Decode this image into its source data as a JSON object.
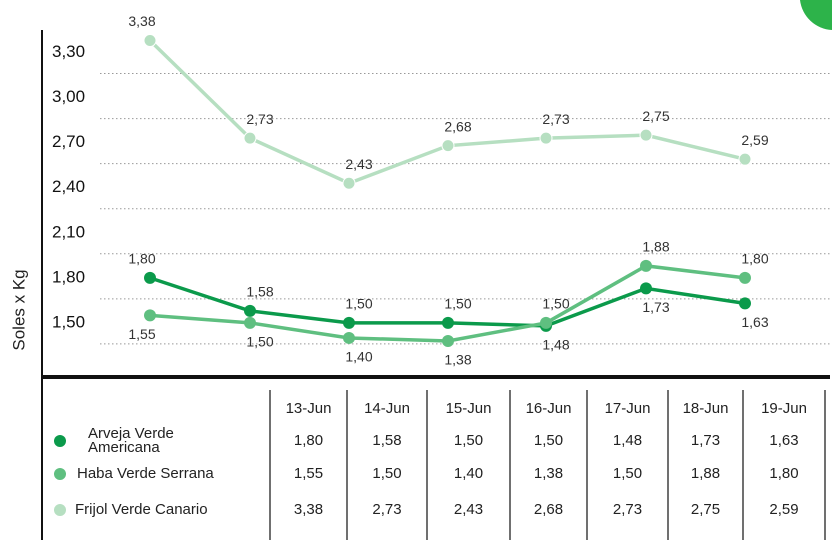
{
  "chart_data": {
    "type": "line",
    "y_label": "Soles x Kg",
    "categories": [
      "13-Jun",
      "14-Jun",
      "15-Jun",
      "16-Jun",
      "17-Jun",
      "18-Jun",
      "19-Jun"
    ],
    "series": [
      {
        "name": "Arveja Verde Americana",
        "color": "#0b9a4b",
        "values": [
          1.8,
          1.58,
          1.5,
          1.5,
          1.48,
          1.73,
          1.63
        ],
        "value_labels": [
          "1,80",
          "1,58",
          "1,50",
          "1,50",
          "1,48",
          "1,73",
          "1,63"
        ]
      },
      {
        "name": "Haba Verde Serrana",
        "color": "#5fbf80",
        "values": [
          1.55,
          1.5,
          1.4,
          1.38,
          1.5,
          1.88,
          1.8
        ],
        "value_labels": [
          "1,55",
          "1,50",
          "1,40",
          "1,38",
          "1,50",
          "1,88",
          "1,80"
        ]
      },
      {
        "name": "Frijol Verde Canario",
        "color": "#b6dfc1",
        "values": [
          3.38,
          2.73,
          2.43,
          2.68,
          2.73,
          2.75,
          2.59
        ],
        "value_labels": [
          "3,38",
          "2,73",
          "2,43",
          "2,68",
          "2,73",
          "2,75",
          "2,59"
        ]
      }
    ],
    "ylim": [
      1.14,
      3.45
    ],
    "yticks": [
      {
        "value": 1.5,
        "label": "1,50"
      },
      {
        "value": 1.8,
        "label": "1,80"
      },
      {
        "value": 2.1,
        "label": "2,10"
      },
      {
        "value": 2.4,
        "label": "2,40"
      },
      {
        "value": 2.7,
        "label": "2,70"
      },
      {
        "value": 3.0,
        "label": "3,00"
      },
      {
        "value": 3.3,
        "label": "3,30"
      }
    ],
    "grid": true
  }
}
